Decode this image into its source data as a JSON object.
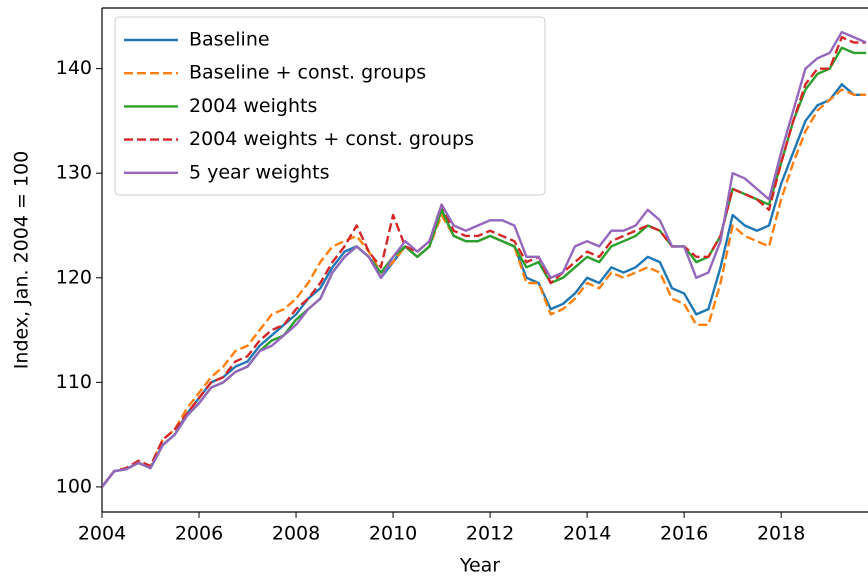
{
  "chart_data": {
    "type": "line",
    "xlabel": "Year",
    "ylabel": "Index, Jan. 2004 = 100",
    "xlim": [
      2004,
      2019.79
    ],
    "ylim": [
      97.6,
      145.8
    ],
    "xticks": [
      2004,
      2006,
      2008,
      2010,
      2012,
      2014,
      2016,
      2018
    ],
    "yticks": [
      100,
      110,
      120,
      130,
      140
    ],
    "legend": "upper left",
    "x": [
      2004,
      2004.25,
      2004.5,
      2004.75,
      2005,
      2005.25,
      2005.5,
      2005.75,
      2006,
      2006.25,
      2006.5,
      2006.75,
      2007,
      2007.25,
      2007.5,
      2007.75,
      2008,
      2008.25,
      2008.5,
      2008.75,
      2009,
      2009.25,
      2009.5,
      2009.75,
      2010,
      2010.25,
      2010.5,
      2010.75,
      2011,
      2011.25,
      2011.5,
      2011.75,
      2012,
      2012.25,
      2012.5,
      2012.75,
      2013,
      2013.25,
      2013.5,
      2013.75,
      2014,
      2014.25,
      2014.5,
      2014.75,
      2015,
      2015.25,
      2015.5,
      2015.75,
      2016,
      2016.25,
      2016.5,
      2016.75,
      2017,
      2017.25,
      2017.5,
      2017.75,
      2018,
      2018.25,
      2018.5,
      2018.75,
      2019,
      2019.25,
      2019.5,
      2019.75
    ],
    "series": [
      {
        "name": "Baseline",
        "color": "#1f77b4",
        "linestyle": "solid",
        "values": [
          100,
          101.5,
          101.7,
          102.3,
          101.8,
          104,
          105,
          107,
          108.5,
          110,
          110.5,
          111.5,
          112,
          113.5,
          114.5,
          115.5,
          116.5,
          118,
          119,
          121,
          122.5,
          123,
          122,
          120,
          121.5,
          123,
          122,
          123,
          126.5,
          124,
          123.5,
          123.5,
          124,
          123.5,
          123,
          120,
          119.5,
          117,
          117.5,
          118.5,
          120,
          119.5,
          121,
          120.5,
          121,
          122,
          121.5,
          119,
          118.5,
          116.5,
          117,
          121,
          126,
          125,
          124.5,
          125,
          129,
          132,
          135,
          136.5,
          137,
          138.5,
          137.5,
          137.5
        ]
      },
      {
        "name": "Baseline + const. groups",
        "color": "#ff7f0e",
        "linestyle": "dashed",
        "values": [
          100,
          101.5,
          101.8,
          102.3,
          102,
          104.5,
          105.5,
          107.5,
          109,
          110.5,
          111.5,
          113,
          113.5,
          115,
          116.5,
          117,
          118,
          119.5,
          121.5,
          123,
          123.5,
          124,
          122.5,
          120.5,
          121.5,
          123,
          122,
          123,
          126,
          124,
          123.5,
          123.5,
          124,
          123.5,
          123,
          119.5,
          119.5,
          116.5,
          117,
          118,
          119.5,
          119,
          120.5,
          120,
          120.5,
          121,
          120.5,
          118,
          117.5,
          115.5,
          115.5,
          119.5,
          125,
          124,
          123.5,
          123,
          127.5,
          131,
          134,
          136,
          137,
          138,
          137.5,
          137.5
        ]
      },
      {
        "name": "2004 weights",
        "color": "#2ca02c",
        "linestyle": "solid",
        "values": [
          100,
          101.5,
          101.7,
          102.3,
          101.8,
          104,
          105,
          106.8,
          108,
          109.5,
          110,
          111,
          111.5,
          113,
          114,
          114.5,
          116,
          117,
          118,
          120.5,
          122,
          123,
          122,
          120.5,
          122,
          123,
          122,
          123,
          126.5,
          124,
          123.5,
          123.5,
          124,
          123.5,
          123,
          121,
          121.5,
          119.5,
          120,
          121,
          122,
          121.5,
          123,
          123.5,
          124,
          125,
          124.5,
          123,
          123,
          121.5,
          122,
          124,
          128.5,
          128,
          127.5,
          127,
          131,
          135,
          138,
          139.5,
          140,
          142,
          141.5,
          141.5
        ]
      },
      {
        "name": "2004 weights + const. groups",
        "color": "#d62728",
        "linestyle": "dashed",
        "values": [
          100,
          101.5,
          101.8,
          102.5,
          102,
          104.5,
          105.5,
          107,
          108.5,
          110,
          110.5,
          112,
          112.5,
          114,
          115,
          115.5,
          117,
          118,
          119.5,
          121.5,
          123,
          125,
          122.5,
          121,
          126,
          123,
          122.5,
          123.5,
          127,
          124.5,
          124,
          124,
          124.5,
          124,
          123.5,
          121.5,
          122,
          119.5,
          120.5,
          121.5,
          122.5,
          122,
          123.5,
          124,
          124.5,
          125,
          124.5,
          123,
          123,
          122,
          122,
          124,
          128.5,
          128,
          127.5,
          126.5,
          131,
          135,
          138.5,
          140,
          140,
          143,
          142.5,
          142.5
        ]
      },
      {
        "name": "5 year weights",
        "color": "#9467bd",
        "linestyle": "solid",
        "values": [
          100,
          101.5,
          101.7,
          102.3,
          101.8,
          104,
          105,
          106.8,
          108,
          109.5,
          110,
          111,
          111.5,
          113,
          113.5,
          114.5,
          115.5,
          117,
          118,
          120.5,
          122,
          123,
          122,
          120,
          122,
          123.5,
          122.5,
          123.5,
          127,
          125,
          124.5,
          125,
          125.5,
          125.5,
          125,
          122,
          122,
          120,
          120.5,
          123,
          123.5,
          123,
          124.5,
          124.5,
          125,
          126.5,
          125.5,
          123,
          123,
          120,
          120.5,
          123.5,
          130,
          129.5,
          128.5,
          127.5,
          132,
          136,
          140,
          141,
          141.5,
          143.5,
          143,
          142.5
        ]
      }
    ]
  }
}
